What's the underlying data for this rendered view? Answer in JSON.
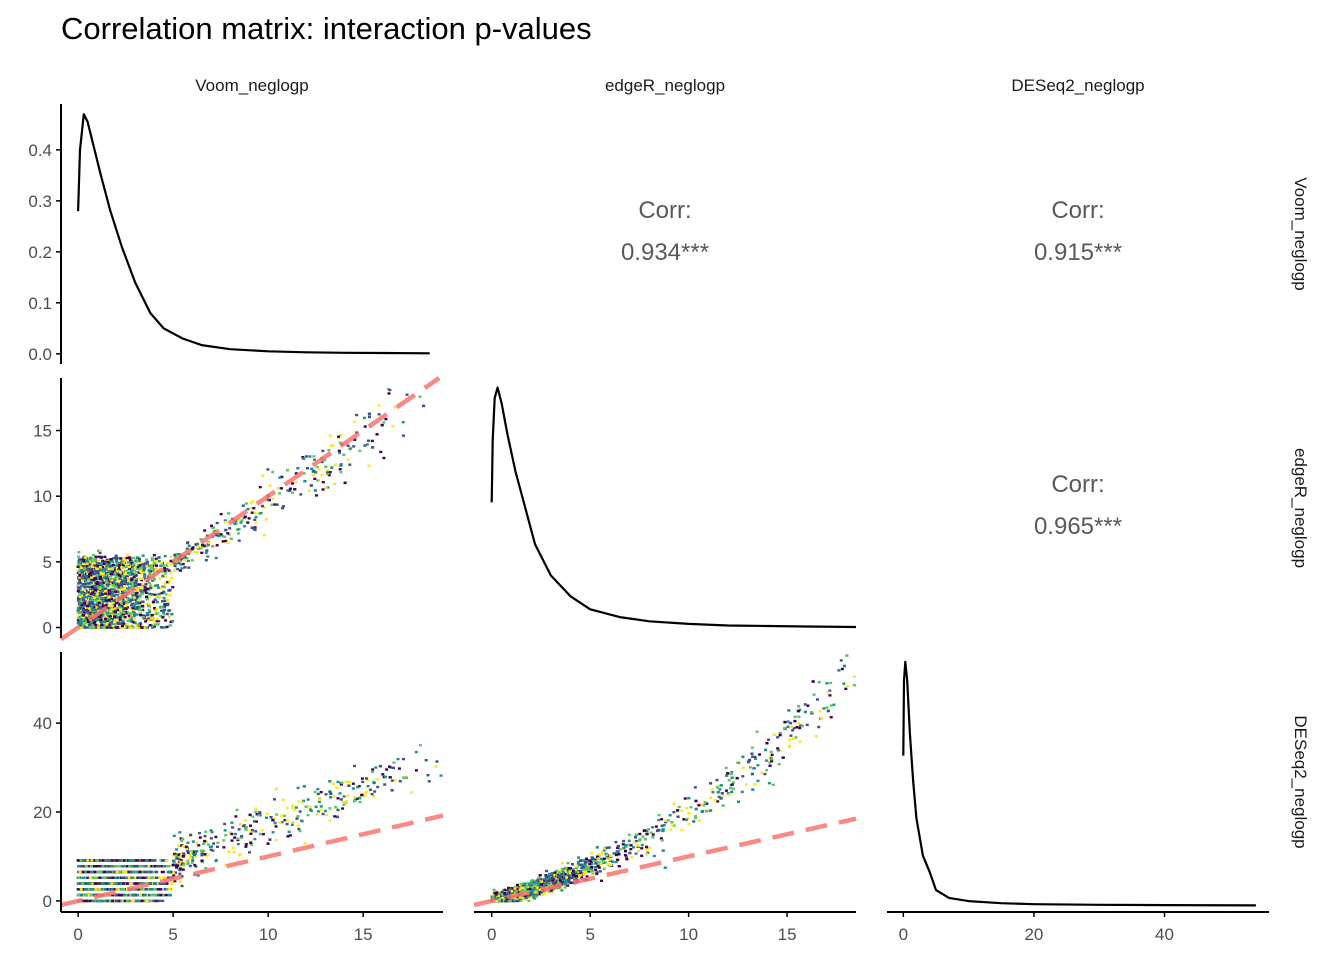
{
  "chart_data": {
    "type": "scatter",
    "title": "Correlation matrix: interaction p-values",
    "variables": [
      "Voom_neglogp",
      "edgeR_neglogp",
      "DESeq2_neglogp"
    ],
    "correlations": [
      {
        "row": 0,
        "col": 1,
        "label": "Corr:",
        "value": "0.934***"
      },
      {
        "row": 0,
        "col": 2,
        "label": "Corr:",
        "value": "0.915***"
      },
      {
        "row": 1,
        "col": 2,
        "label": "Corr:",
        "value": "0.965***"
      }
    ],
    "x_axes": [
      {
        "range": [
          -0.9,
          19.2
        ],
        "ticks": [
          0,
          5,
          10,
          15
        ],
        "tick_labels": [
          "0",
          "5",
          "10",
          "15"
        ]
      },
      {
        "range": [
          -0.9,
          18.5
        ],
        "ticks": [
          0,
          5,
          10,
          15
        ],
        "tick_labels": [
          "0",
          "5",
          "10",
          "15"
        ]
      },
      {
        "range": [
          -2.5,
          56.0
        ],
        "ticks": [
          0,
          20,
          40
        ],
        "tick_labels": [
          "0",
          "20",
          "40"
        ]
      }
    ],
    "y_axes": [
      {
        "range": [
          -0.02,
          0.49
        ],
        "ticks": [
          0.0,
          0.1,
          0.2,
          0.3,
          0.4
        ],
        "tick_labels": [
          "0.0",
          "0.1",
          "0.2",
          "0.3",
          "0.4"
        ]
      },
      {
        "range": [
          -0.8,
          19.0
        ],
        "ticks": [
          0,
          5,
          10,
          15
        ],
        "tick_labels": [
          "0",
          "5",
          "10",
          "15"
        ]
      },
      {
        "range": [
          -2.5,
          56.0
        ],
        "ticks": [
          0,
          20,
          40
        ],
        "tick_labels": [
          "0",
          "20",
          "40"
        ]
      }
    ],
    "densities": [
      {
        "name": "Voom_neglogp",
        "x": [
          0,
          0.1,
          0.3,
          0.5,
          0.8,
          1.2,
          1.7,
          2.3,
          3,
          3.8,
          4.5,
          5.5,
          6.5,
          8,
          10,
          12,
          14,
          16,
          18.5
        ],
        "y": [
          0.28,
          0.4,
          0.47,
          0.455,
          0.41,
          0.35,
          0.28,
          0.21,
          0.14,
          0.08,
          0.05,
          0.03,
          0.017,
          0.009,
          0.005,
          0.003,
          0.002,
          0.0015,
          0.001
        ]
      },
      {
        "name": "edgeR_neglogp",
        "x": [
          0,
          0.05,
          0.15,
          0.3,
          0.5,
          0.8,
          1.2,
          1.7,
          2.2,
          3,
          4,
          5,
          6.5,
          8,
          10,
          12,
          14,
          16,
          18.5
        ],
        "y": [
          0.24,
          0.36,
          0.44,
          0.46,
          0.43,
          0.37,
          0.3,
          0.23,
          0.16,
          0.1,
          0.06,
          0.035,
          0.02,
          0.012,
          0.007,
          0.004,
          0.003,
          0.002,
          0.001
        ]
      },
      {
        "name": "DESeq2_neglogp",
        "x": [
          0,
          0.1,
          0.3,
          0.6,
          1,
          1.5,
          2,
          3,
          4,
          5,
          7,
          10,
          15,
          20,
          30,
          40,
          54
        ],
        "y": [
          0.48,
          0.72,
          0.78,
          0.72,
          0.55,
          0.4,
          0.28,
          0.16,
          0.11,
          0.05,
          0.025,
          0.015,
          0.008,
          0.005,
          0.003,
          0.002,
          0.001
        ]
      }
    ],
    "density_range": [
      0,
      0.8
    ],
    "reference_line": {
      "slope": 1,
      "intercept": 0,
      "color": "#f8766d",
      "style": "dashed"
    },
    "colors": {
      "axis": "#000000",
      "density": "#000000",
      "viridis": [
        "#440154",
        "#3b528b",
        "#21908c",
        "#5dc863",
        "#fde725"
      ]
    }
  }
}
